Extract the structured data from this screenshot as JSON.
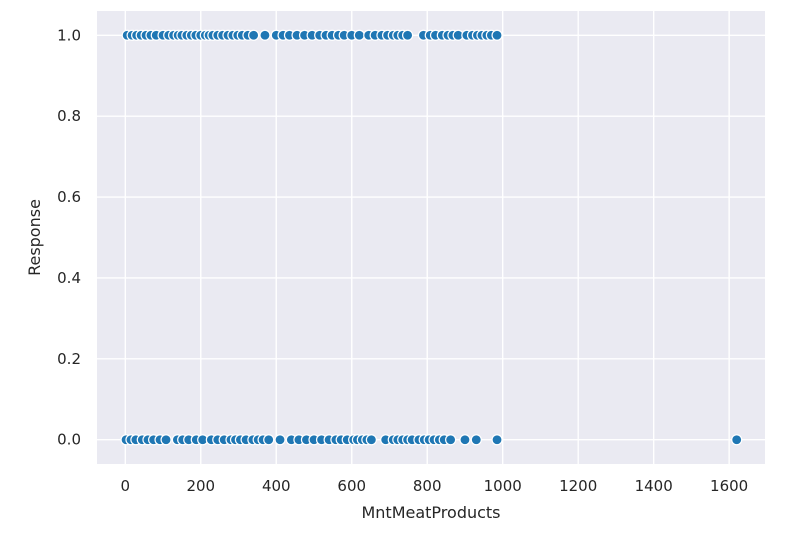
{
  "chart_data": {
    "type": "scatter",
    "title": "",
    "xlabel": "MntMeatProducts",
    "ylabel": "Response",
    "xlim": [
      -75,
      1695
    ],
    "ylim": [
      -0.06,
      1.06
    ],
    "grid": true,
    "legend": "none",
    "x_ticks": [
      "0",
      "200",
      "400",
      "600",
      "800",
      "1000",
      "1200",
      "1400",
      "1600"
    ],
    "y_ticks": [
      "0.0",
      "0.2",
      "0.4",
      "0.6",
      "0.8",
      "1.0"
    ],
    "series": [
      {
        "color": "#1f77b4",
        "points": [
          {
            "x": 5,
            "y": 1
          },
          {
            "x": 18,
            "y": 1
          },
          {
            "x": 30,
            "y": 1
          },
          {
            "x": 42,
            "y": 1
          },
          {
            "x": 55,
            "y": 1
          },
          {
            "x": 68,
            "y": 1
          },
          {
            "x": 82,
            "y": 1
          },
          {
            "x": 100,
            "y": 1
          },
          {
            "x": 115,
            "y": 1
          },
          {
            "x": 128,
            "y": 1
          },
          {
            "x": 140,
            "y": 1
          },
          {
            "x": 150,
            "y": 1
          },
          {
            "x": 163,
            "y": 1
          },
          {
            "x": 175,
            "y": 1
          },
          {
            "x": 187,
            "y": 1
          },
          {
            "x": 200,
            "y": 1
          },
          {
            "x": 212,
            "y": 1
          },
          {
            "x": 222,
            "y": 1
          },
          {
            "x": 232,
            "y": 1
          },
          {
            "x": 245,
            "y": 1
          },
          {
            "x": 258,
            "y": 1
          },
          {
            "x": 272,
            "y": 1
          },
          {
            "x": 285,
            "y": 1
          },
          {
            "x": 298,
            "y": 1
          },
          {
            "x": 310,
            "y": 1
          },
          {
            "x": 325,
            "y": 1
          },
          {
            "x": 340,
            "y": 1
          },
          {
            "x": 370,
            "y": 1
          },
          {
            "x": 400,
            "y": 1
          },
          {
            "x": 418,
            "y": 1
          },
          {
            "x": 435,
            "y": 1
          },
          {
            "x": 455,
            "y": 1
          },
          {
            "x": 475,
            "y": 1
          },
          {
            "x": 495,
            "y": 1
          },
          {
            "x": 515,
            "y": 1
          },
          {
            "x": 532,
            "y": 1
          },
          {
            "x": 548,
            "y": 1
          },
          {
            "x": 565,
            "y": 1
          },
          {
            "x": 580,
            "y": 1
          },
          {
            "x": 600,
            "y": 1
          },
          {
            "x": 620,
            "y": 1
          },
          {
            "x": 645,
            "y": 1
          },
          {
            "x": 662,
            "y": 1
          },
          {
            "x": 680,
            "y": 1
          },
          {
            "x": 695,
            "y": 1
          },
          {
            "x": 710,
            "y": 1
          },
          {
            "x": 722,
            "y": 1
          },
          {
            "x": 735,
            "y": 1
          },
          {
            "x": 748,
            "y": 1
          },
          {
            "x": 790,
            "y": 1
          },
          {
            "x": 808,
            "y": 1
          },
          {
            "x": 822,
            "y": 1
          },
          {
            "x": 840,
            "y": 1
          },
          {
            "x": 855,
            "y": 1
          },
          {
            "x": 868,
            "y": 1
          },
          {
            "x": 882,
            "y": 1
          },
          {
            "x": 905,
            "y": 1
          },
          {
            "x": 920,
            "y": 1
          },
          {
            "x": 933,
            "y": 1
          },
          {
            "x": 945,
            "y": 1
          },
          {
            "x": 958,
            "y": 1
          },
          {
            "x": 970,
            "y": 1
          },
          {
            "x": 985,
            "y": 1
          },
          {
            "x": 2,
            "y": 0
          },
          {
            "x": 15,
            "y": 0
          },
          {
            "x": 28,
            "y": 0
          },
          {
            "x": 45,
            "y": 0
          },
          {
            "x": 60,
            "y": 0
          },
          {
            "x": 75,
            "y": 0
          },
          {
            "x": 92,
            "y": 0
          },
          {
            "x": 108,
            "y": 0
          },
          {
            "x": 138,
            "y": 0
          },
          {
            "x": 152,
            "y": 0
          },
          {
            "x": 168,
            "y": 0
          },
          {
            "x": 188,
            "y": 0
          },
          {
            "x": 205,
            "y": 0
          },
          {
            "x": 228,
            "y": 0
          },
          {
            "x": 245,
            "y": 0
          },
          {
            "x": 262,
            "y": 0
          },
          {
            "x": 280,
            "y": 0
          },
          {
            "x": 292,
            "y": 0
          },
          {
            "x": 305,
            "y": 0
          },
          {
            "x": 320,
            "y": 0
          },
          {
            "x": 338,
            "y": 0
          },
          {
            "x": 352,
            "y": 0
          },
          {
            "x": 365,
            "y": 0
          },
          {
            "x": 380,
            "y": 0
          },
          {
            "x": 410,
            "y": 0
          },
          {
            "x": 440,
            "y": 0
          },
          {
            "x": 460,
            "y": 0
          },
          {
            "x": 480,
            "y": 0
          },
          {
            "x": 500,
            "y": 0
          },
          {
            "x": 520,
            "y": 0
          },
          {
            "x": 540,
            "y": 0
          },
          {
            "x": 558,
            "y": 0
          },
          {
            "x": 572,
            "y": 0
          },
          {
            "x": 588,
            "y": 0
          },
          {
            "x": 605,
            "y": 0
          },
          {
            "x": 615,
            "y": 0
          },
          {
            "x": 628,
            "y": 0
          },
          {
            "x": 640,
            "y": 0
          },
          {
            "x": 652,
            "y": 0
          },
          {
            "x": 690,
            "y": 0
          },
          {
            "x": 710,
            "y": 0
          },
          {
            "x": 722,
            "y": 0
          },
          {
            "x": 735,
            "y": 0
          },
          {
            "x": 748,
            "y": 0
          },
          {
            "x": 760,
            "y": 0
          },
          {
            "x": 778,
            "y": 0
          },
          {
            "x": 792,
            "y": 0
          },
          {
            "x": 805,
            "y": 0
          },
          {
            "x": 818,
            "y": 0
          },
          {
            "x": 832,
            "y": 0
          },
          {
            "x": 845,
            "y": 0
          },
          {
            "x": 862,
            "y": 0
          },
          {
            "x": 900,
            "y": 0
          },
          {
            "x": 930,
            "y": 0
          },
          {
            "x": 985,
            "y": 0
          },
          {
            "x": 1620,
            "y": 0
          }
        ]
      }
    ]
  }
}
